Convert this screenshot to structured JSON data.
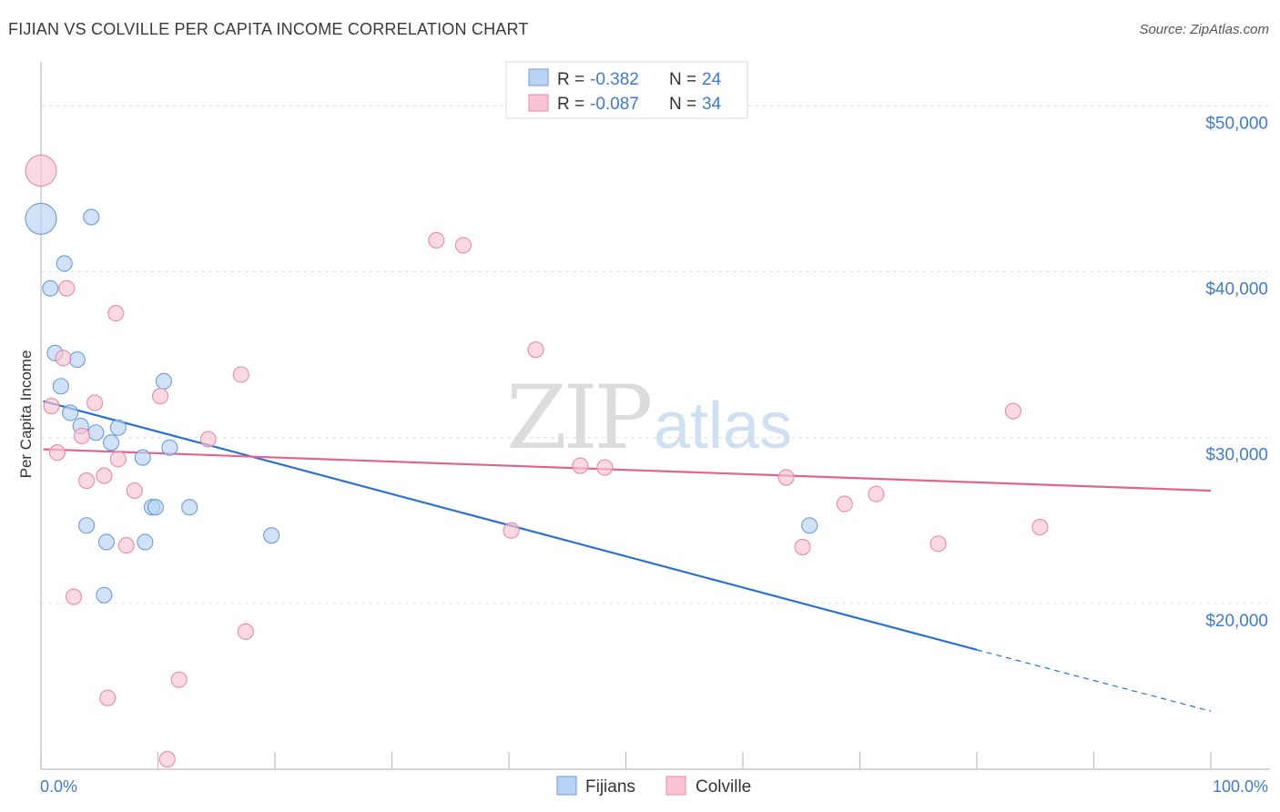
{
  "title": "FIJIAN VS COLVILLE PER CAPITA INCOME CORRELATION CHART",
  "source": "Source: ZipAtlas.com",
  "watermark": {
    "zip": "ZIP",
    "atlas": "atlas"
  },
  "colors": {
    "fijians_fill": "#b9d3f5",
    "fijians_stroke": "#6b9bd8",
    "fijians_line": "#2b72d0",
    "colville_fill": "#f9c4d4",
    "colville_stroke": "#e88aa8",
    "colville_line": "#e0648f",
    "tick_text": "#3f7cc8"
  },
  "legend": {
    "rows": [
      {
        "r_label": "R =",
        "r_value": "-0.382",
        "n_label": "N =",
        "n_value": "24"
      },
      {
        "r_label": "R =",
        "r_value": "-0.087",
        "n_label": "N =",
        "n_value": "34"
      }
    ]
  },
  "bottom_legend": [
    "Fijians",
    "Colville"
  ],
  "chart_data": {
    "type": "scatter",
    "title": "FIJIAN VS COLVILLE PER CAPITA INCOME CORRELATION CHART",
    "xlabel": "",
    "ylabel": "Per Capita Income",
    "xlim": [
      0,
      100
    ],
    "ylim": [
      10000,
      52000
    ],
    "x_tick_labels": [
      "0.0%",
      "100.0%"
    ],
    "y_ticks": [
      20000,
      30000,
      40000,
      50000
    ],
    "y_tick_labels": [
      "$20,000",
      "$30,000",
      "$40,000",
      "$50,000"
    ],
    "series": [
      {
        "name": "Fijians",
        "R": -0.382,
        "N": 24,
        "points": [
          {
            "x": 0.0,
            "y": 43200,
            "big": true
          },
          {
            "x": 4.3,
            "y": 43300
          },
          {
            "x": 2.0,
            "y": 40500
          },
          {
            "x": 0.8,
            "y": 39000
          },
          {
            "x": 1.2,
            "y": 35100
          },
          {
            "x": 3.1,
            "y": 34700
          },
          {
            "x": 1.7,
            "y": 33100
          },
          {
            "x": 10.5,
            "y": 33400
          },
          {
            "x": 2.5,
            "y": 31500
          },
          {
            "x": 3.4,
            "y": 30700
          },
          {
            "x": 4.7,
            "y": 30300
          },
          {
            "x": 6.6,
            "y": 30600
          },
          {
            "x": 6.0,
            "y": 29700
          },
          {
            "x": 11.0,
            "y": 29400
          },
          {
            "x": 8.7,
            "y": 28800
          },
          {
            "x": 9.5,
            "y": 25800
          },
          {
            "x": 9.8,
            "y": 25800
          },
          {
            "x": 12.7,
            "y": 25800
          },
          {
            "x": 3.9,
            "y": 24700
          },
          {
            "x": 19.7,
            "y": 24100
          },
          {
            "x": 5.6,
            "y": 23700
          },
          {
            "x": 8.9,
            "y": 23700
          },
          {
            "x": 5.4,
            "y": 20500
          },
          {
            "x": 65.7,
            "y": 24700
          }
        ],
        "trend": {
          "x1": 0.2,
          "y1": 32200,
          "x2": 80.0,
          "y2": 17200,
          "dash_to_x": 100.0,
          "dash_to_y": 13500
        }
      },
      {
        "name": "Colville",
        "R": -0.087,
        "N": 34,
        "points": [
          {
            "x": 0.0,
            "y": 46100,
            "big": true
          },
          {
            "x": 33.8,
            "y": 41900
          },
          {
            "x": 36.1,
            "y": 41600
          },
          {
            "x": 2.2,
            "y": 39000
          },
          {
            "x": 6.4,
            "y": 37500
          },
          {
            "x": 42.3,
            "y": 35300
          },
          {
            "x": 1.9,
            "y": 34800
          },
          {
            "x": 17.1,
            "y": 33800
          },
          {
            "x": 10.2,
            "y": 32500
          },
          {
            "x": 4.6,
            "y": 32100
          },
          {
            "x": 0.9,
            "y": 31900
          },
          {
            "x": 83.1,
            "y": 31600
          },
          {
            "x": 3.5,
            "y": 30100
          },
          {
            "x": 14.3,
            "y": 29900
          },
          {
            "x": 1.4,
            "y": 29100
          },
          {
            "x": 6.6,
            "y": 28700
          },
          {
            "x": 46.1,
            "y": 28300
          },
          {
            "x": 48.2,
            "y": 28200
          },
          {
            "x": 5.4,
            "y": 27700
          },
          {
            "x": 3.9,
            "y": 27400
          },
          {
            "x": 63.7,
            "y": 27600
          },
          {
            "x": 8.0,
            "y": 26800
          },
          {
            "x": 71.4,
            "y": 26600
          },
          {
            "x": 68.7,
            "y": 26000
          },
          {
            "x": 40.2,
            "y": 24400
          },
          {
            "x": 85.4,
            "y": 24600
          },
          {
            "x": 76.7,
            "y": 23600
          },
          {
            "x": 65.1,
            "y": 23400
          },
          {
            "x": 7.3,
            "y": 23500
          },
          {
            "x": 2.8,
            "y": 20400
          },
          {
            "x": 17.5,
            "y": 18300
          },
          {
            "x": 11.8,
            "y": 15400
          },
          {
            "x": 5.7,
            "y": 14300
          },
          {
            "x": 10.8,
            "y": 10600
          }
        ],
        "trend": {
          "x1": 0.2,
          "y1": 29300,
          "x2": 100.0,
          "y2": 26800
        }
      }
    ]
  }
}
